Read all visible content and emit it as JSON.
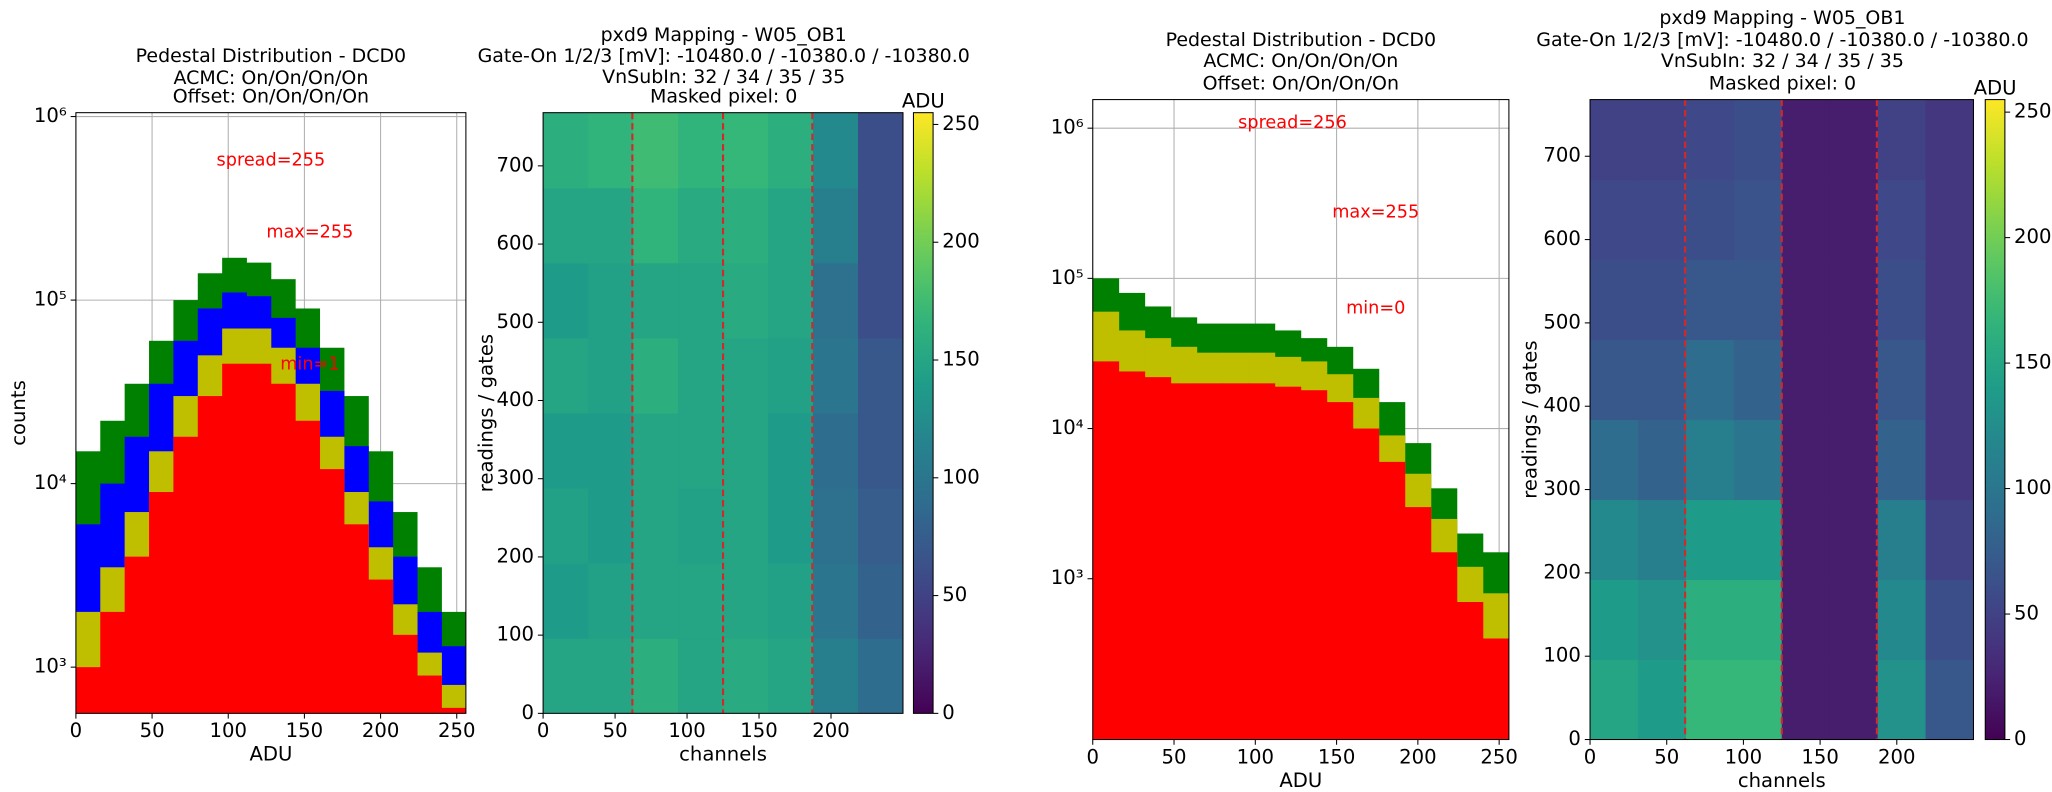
{
  "chart_data": [
    {
      "type": "histogram",
      "title": [
        "Pedestal Distribution - DCD0",
        "ACMC: On/On/On/On",
        "Offset: On/On/On/On"
      ],
      "x_label": "ADU",
      "y_label": "counts",
      "annotations": [
        "spread=255",
        "max=255",
        "min=1"
      ],
      "annotation_color": "#ff0000",
      "bins": [
        0,
        16,
        32,
        48,
        64,
        80,
        96,
        112,
        128,
        144,
        160,
        176,
        192,
        208,
        224,
        240,
        256
      ],
      "series": [
        {
          "color": "#008000",
          "values": [
            15000,
            22000,
            35000,
            60000,
            100000,
            140000,
            170000,
            160000,
            130000,
            90000,
            55000,
            30000,
            15000,
            7000,
            3500,
            2000
          ]
        },
        {
          "color": "#0000ff",
          "values": [
            6000,
            10000,
            18000,
            35000,
            60000,
            90000,
            110000,
            105000,
            80000,
            55000,
            32000,
            16000,
            8000,
            4000,
            2000,
            1300
          ]
        },
        {
          "color": "#bfbf00",
          "values": [
            2000,
            3500,
            7000,
            15000,
            30000,
            50000,
            70000,
            70000,
            55000,
            35000,
            18000,
            9000,
            4500,
            2200,
            1200,
            800
          ]
        },
        {
          "color": "#ff0000",
          "values": [
            1000,
            2000,
            4000,
            9000,
            18000,
            30000,
            45000,
            45000,
            35000,
            22000,
            12000,
            6000,
            3000,
            1500,
            900,
            600
          ]
        }
      ],
      "xlim": [
        0,
        256
      ],
      "xticks": [
        0,
        50,
        100,
        150,
        200,
        250
      ],
      "ylim": [
        560,
        1050000
      ],
      "ylog": true,
      "grid": true,
      "yticks": [
        {
          "value": 1000,
          "label": "10³"
        },
        {
          "value": 10000,
          "label": "10⁴"
        },
        {
          "value": 100000,
          "label": "10⁵"
        },
        {
          "value": 1000000,
          "label": "10⁶"
        }
      ]
    },
    {
      "type": "heatmap",
      "title": [
        "pxd9 Mapping - W05_OB1",
        "Gate-On 1/2/3 [mV]: -10480.0 / -10380.0 / -10380.0",
        "VnSubIn: 32 / 34 / 35 / 35",
        "Masked pixel: 0"
      ],
      "x_label": "channels",
      "y_label": "readings / gates",
      "colorbar_label": "ADU",
      "colormap": "viridis",
      "xlim": [
        0,
        250
      ],
      "xticks": [
        0,
        50,
        100,
        150,
        200
      ],
      "ylim": [
        0,
        768
      ],
      "yticks": [
        0,
        100,
        200,
        300,
        400,
        500,
        600,
        700
      ],
      "zlim": [
        0,
        255
      ],
      "zticks": [
        0,
        50,
        100,
        150,
        200,
        250
      ],
      "vlines": [
        62,
        125,
        187
      ],
      "vline_color": "#d62728",
      "z": [
        [
          150,
          150,
          160,
          150,
          155,
          150,
          110,
          90
        ],
        [
          140,
          145,
          150,
          150,
          150,
          145,
          100,
          80
        ],
        [
          145,
          140,
          150,
          145,
          150,
          140,
          95,
          75
        ],
        [
          140,
          140,
          150,
          150,
          150,
          140,
          90,
          70
        ],
        [
          150,
          145,
          160,
          150,
          150,
          145,
          100,
          70
        ],
        [
          140,
          145,
          150,
          150,
          155,
          150,
          95,
          60
        ],
        [
          150,
          150,
          165,
          155,
          160,
          150,
          110,
          60
        ],
        [
          160,
          165,
          175,
          165,
          170,
          160,
          120,
          60
        ]
      ]
    },
    {
      "type": "histogram",
      "title": [
        "Pedestal Distribution - DCD0",
        "ACMC: On/On/On/On",
        "Offset: On/On/On/On"
      ],
      "x_label": "ADU",
      "annotations": [
        "spread=256",
        "max=255",
        "min=0"
      ],
      "annotation_color": "#ff0000",
      "bins": [
        0,
        16,
        32,
        48,
        64,
        80,
        96,
        112,
        128,
        144,
        160,
        176,
        192,
        208,
        224,
        240,
        256
      ],
      "series": [
        {
          "color": "#008000",
          "values": [
            100000,
            80000,
            65000,
            55000,
            50000,
            50000,
            50000,
            45000,
            40000,
            35000,
            25000,
            15000,
            8000,
            4000,
            2000,
            1500
          ]
        },
        {
          "color": "#bfbf00",
          "values": [
            60000,
            45000,
            40000,
            35000,
            32000,
            32000,
            32000,
            30000,
            28000,
            23000,
            16000,
            9000,
            5000,
            2500,
            1200,
            800
          ]
        },
        {
          "color": "#ff0000",
          "values": [
            28000,
            24000,
            22000,
            20000,
            20000,
            20000,
            20000,
            19000,
            18000,
            15000,
            10000,
            6000,
            3000,
            1500,
            700,
            400
          ]
        }
      ],
      "xlim": [
        0,
        256
      ],
      "xticks": [
        0,
        50,
        100,
        150,
        200,
        250
      ],
      "ylim": [
        85,
        1550000
      ],
      "ylog": true,
      "grid": true,
      "yticks": [
        {
          "value": 1000,
          "label": "10³"
        },
        {
          "value": 10000,
          "label": "10⁴"
        },
        {
          "value": 100000,
          "label": "10⁵"
        },
        {
          "value": 1000000,
          "label": "10⁶"
        }
      ]
    },
    {
      "type": "heatmap",
      "title": [
        "pxd9 Mapping - W05_OB1",
        "Gate-On 1/2/3 [mV]: -10480.0 / -10380.0 / -10380.0",
        "VnSubIn: 32 / 34 / 35 / 35",
        "Masked pixel: 0"
      ],
      "x_label": "channels",
      "y_label": "readings / gates",
      "colorbar_label": "ADU",
      "colormap": "viridis",
      "xlim": [
        0,
        250
      ],
      "xticks": [
        0,
        50,
        100,
        150,
        200
      ],
      "ylim": [
        0,
        768
      ],
      "yticks": [
        0,
        100,
        200,
        300,
        400,
        500,
        600,
        700
      ],
      "zlim": [
        0,
        255
      ],
      "zticks": [
        0,
        50,
        100,
        150,
        200,
        250
      ],
      "vlines": [
        62,
        125,
        187
      ],
      "vline_color": "#d62728",
      "z": [
        [
          150,
          140,
          170,
          170,
          20,
          20,
          130,
          70
        ],
        [
          140,
          130,
          160,
          160,
          20,
          20,
          120,
          60
        ],
        [
          120,
          110,
          140,
          140,
          20,
          20,
          110,
          50
        ],
        [
          90,
          80,
          110,
          100,
          20,
          20,
          80,
          40
        ],
        [
          70,
          70,
          90,
          80,
          20,
          20,
          70,
          40
        ],
        [
          60,
          60,
          70,
          70,
          20,
          20,
          60,
          40
        ],
        [
          55,
          55,
          60,
          65,
          20,
          20,
          55,
          40
        ],
        [
          50,
          50,
          55,
          60,
          20,
          20,
          50,
          40
        ]
      ]
    }
  ]
}
